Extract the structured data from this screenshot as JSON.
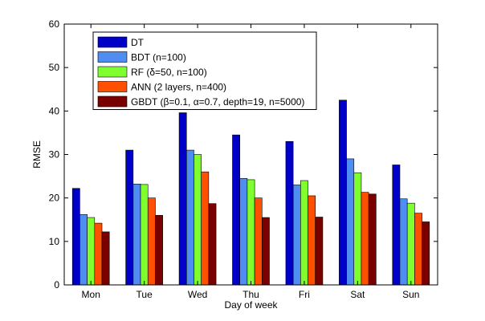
{
  "chart_data": {
    "type": "bar",
    "title": "",
    "xlabel": "Day of week",
    "ylabel": "RMSE",
    "ylim": [
      0,
      60
    ],
    "yticks": [
      0,
      10,
      20,
      30,
      40,
      50,
      60
    ],
    "grid": false,
    "legend_position": "top-left",
    "categories": [
      "Mon",
      "Tue",
      "Wed",
      "Thu",
      "Fri",
      "Sat",
      "Sun"
    ],
    "series": [
      {
        "name": "DT",
        "color": "#0000c8",
        "values": [
          22.2,
          31.0,
          39.6,
          34.5,
          33.0,
          42.5,
          27.6
        ]
      },
      {
        "name": "BDT (n=100)",
        "color": "#4f8ef0",
        "values": [
          16.2,
          23.2,
          31.0,
          24.5,
          23.0,
          29.0,
          19.8
        ]
      },
      {
        "name": "RF (δ=50, n=100)",
        "color": "#80ff2f",
        "values": [
          15.5,
          23.1,
          30.0,
          24.2,
          24.0,
          25.8,
          18.8
        ]
      },
      {
        "name": "ANN (2 layers, n=400)",
        "color": "#ff4f00",
        "values": [
          14.2,
          20.0,
          26.0,
          20.0,
          20.5,
          21.3,
          16.5
        ]
      },
      {
        "name": "GBDT (β=0.1, α=0.7, depth=19, n=5000)",
        "color": "#7a0000",
        "values": [
          12.2,
          16.0,
          18.7,
          15.5,
          15.6,
          20.9,
          14.5
        ]
      }
    ]
  }
}
